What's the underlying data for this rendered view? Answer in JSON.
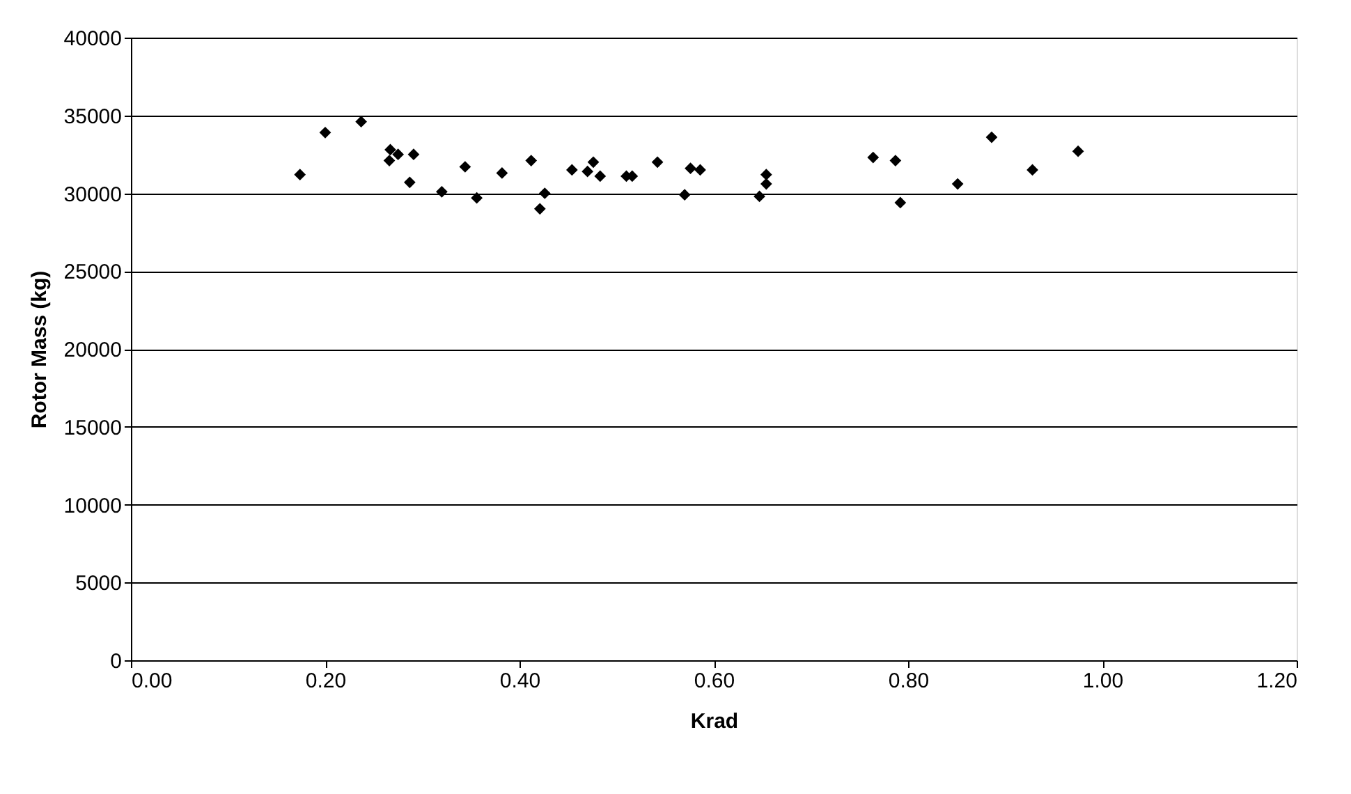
{
  "chart_data": {
    "type": "scatter",
    "xlabel": "Krad",
    "ylabel": "Rotor Mass (kg)",
    "x": [
      0.174,
      0.2,
      0.237,
      0.266,
      0.267,
      0.275,
      0.291,
      0.287,
      0.32,
      0.344,
      0.356,
      0.382,
      0.412,
      0.426,
      0.421,
      0.454,
      0.47,
      0.476,
      0.483,
      0.51,
      0.516,
      0.542,
      0.57,
      0.576,
      0.586,
      0.647,
      0.654,
      0.654,
      0.764,
      0.787,
      0.792,
      0.851,
      0.886,
      0.928,
      0.975
    ],
    "series": [
      {
        "color": "#000000",
        "values": [
          31200,
          33900,
          34600,
          32100,
          32800,
          32500,
          32500,
          30700,
          30100,
          31700,
          29700,
          31300,
          32100,
          30000,
          29000,
          31500,
          31400,
          32000,
          31100,
          31100,
          31100,
          32000,
          29900,
          31600,
          31500,
          29800,
          30600,
          31200,
          32300,
          32100,
          29400,
          30600,
          33600,
          31500,
          32700
        ]
      }
    ],
    "marker": "diamond",
    "xlim": [
      0,
      1.2
    ],
    "xticks": [
      {
        "value": 0,
        "label": "0.00"
      },
      {
        "value": 0.2,
        "label": "0.20"
      },
      {
        "value": 0.4,
        "label": "0.40"
      },
      {
        "value": 0.6,
        "label": "0.60"
      },
      {
        "value": 0.8,
        "label": "0.80"
      },
      {
        "value": 1.0,
        "label": "1.00"
      },
      {
        "value": 1.2,
        "label": "1.20"
      }
    ],
    "ylim": [
      0,
      40000
    ],
    "yticks": [
      0,
      5000,
      10000,
      15000,
      20000,
      25000,
      30000,
      35000,
      40000
    ],
    "grid": "y"
  }
}
